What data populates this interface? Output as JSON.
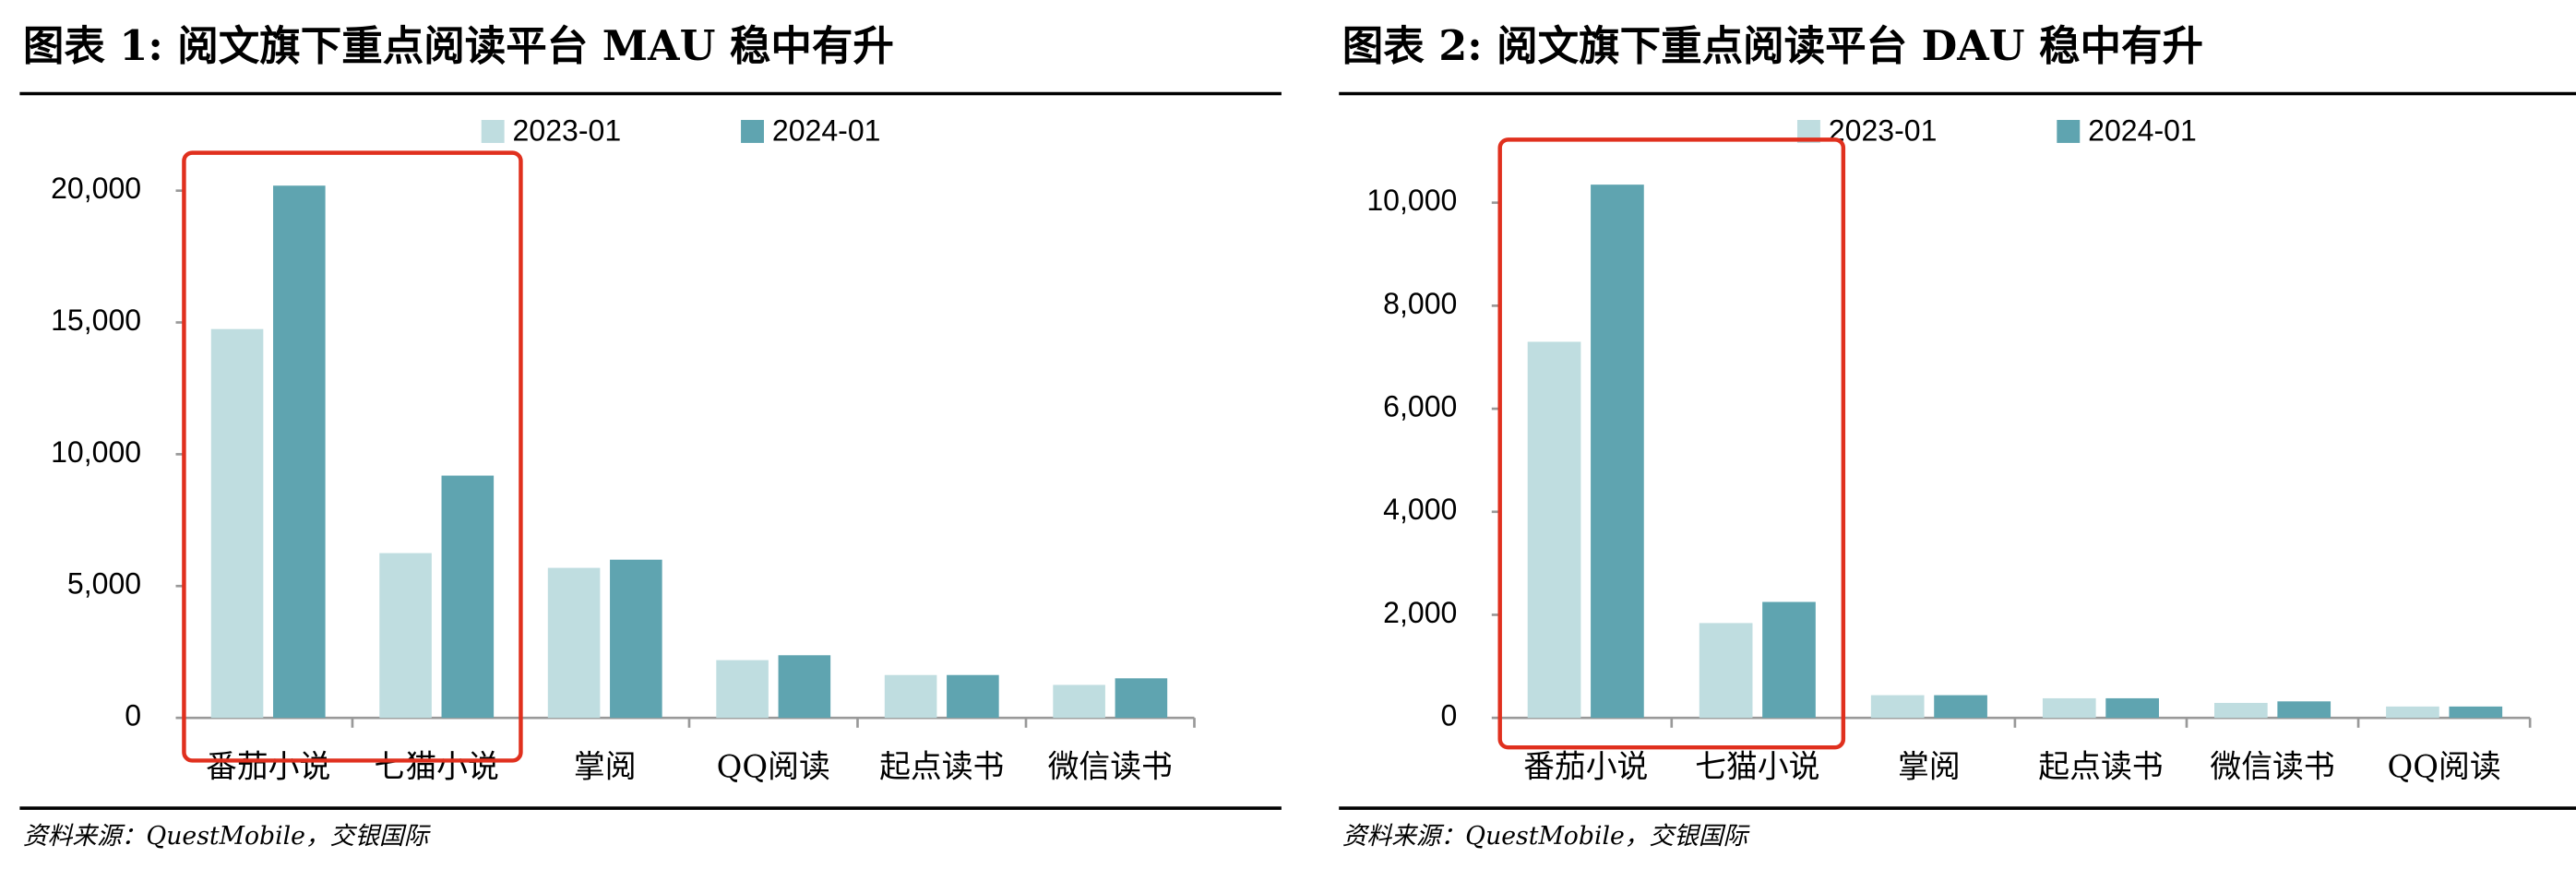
{
  "chart_data": [
    {
      "type": "bar",
      "title": "图表 1: 阅文旗下重点阅读平台 MAU 稳中有升",
      "categories": [
        "番茄小说",
        "七猫小说",
        "掌阅",
        "QQ阅读",
        "起点读书",
        "微信读书"
      ],
      "series": [
        {
          "name": "2023-01",
          "color": "#bfdde0",
          "values": [
            14750,
            6250,
            5690,
            2190,
            1625,
            1250
          ]
        },
        {
          "name": "2024-01",
          "color": "#5fa4b0",
          "values": [
            20190,
            9190,
            6000,
            2375,
            1625,
            1500
          ]
        }
      ],
      "ylim": [
        0,
        21000
      ],
      "yticks": [
        0,
        {
          "value": 5000,
          "label": "5,000"
        },
        {
          "value": 10000,
          "label": "10,000"
        },
        {
          "value": 15000,
          "label": "15,000"
        },
        {
          "value": 20000,
          "label": "20,000"
        }
      ],
      "source": "资料来源：QuestMobile，交银国际"
    },
    {
      "type": "bar",
      "title": "图表 2: 阅文旗下重点阅读平台 DAU 稳中有升",
      "categories": [
        "番茄小说",
        "七猫小说",
        "掌阅",
        "起点读书",
        "微信读书",
        "QQ阅读"
      ],
      "series": [
        {
          "name": "2023-01",
          "color": "#bfdde0",
          "values": [
            7300,
            1840,
            440,
            380,
            290,
            220
          ]
        },
        {
          "name": "2024-01",
          "color": "#5fa4b0",
          "values": [
            10350,
            2250,
            440,
            380,
            320,
            220
          ]
        }
      ],
      "ylim": [
        0,
        11000
      ],
      "yticks": [
        0,
        {
          "value": 2000,
          "label": "2,000"
        },
        {
          "value": 4000,
          "label": "4,000"
        },
        {
          "value": 6000,
          "label": "6,000"
        },
        {
          "value": 8000,
          "label": "8,000"
        },
        {
          "value": 10000,
          "label": "10,000"
        }
      ],
      "source": "资料来源：QuestMobile，交银国际"
    }
  ]
}
